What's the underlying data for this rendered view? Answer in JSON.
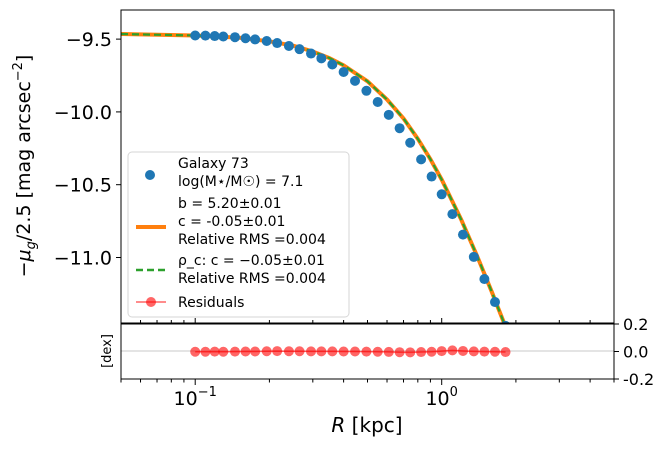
{
  "chart_data": {
    "type": "scatter",
    "xlabel": "R [kpc]",
    "ylabel": "−μ_g/2.5 [mag arcsec^−2]",
    "residual_ylabel": "[dex]",
    "x_scale": "log",
    "xlim": [
      0.05,
      5
    ],
    "ylim": [
      -11.45,
      -9.3
    ],
    "residual_ylim": [
      -0.2,
      0.2
    ],
    "x_ticks": [
      {
        "value": 0.1,
        "base": "10",
        "exp": "−1"
      },
      {
        "value": 1,
        "base": "10",
        "exp": "0"
      }
    ],
    "y_ticks": [
      {
        "value": -9.5,
        "label": "−9.5"
      },
      {
        "value": -10.0,
        "label": "−10.0"
      },
      {
        "value": -10.5,
        "label": "−10.5"
      },
      {
        "value": -11.0,
        "label": "−11.0"
      }
    ],
    "residual_ticks": [
      {
        "value": 0.2,
        "label": "0.2"
      },
      {
        "value": 0.0,
        "label": "0.0"
      },
      {
        "value": -0.2,
        "label": "-0.2"
      }
    ],
    "colors": {
      "data": "#1f77b4",
      "fit": "#ff7f0e",
      "rho_fit": "#2ca02c",
      "residuals": "#ff0000"
    },
    "legend": {
      "placement": "lower-left",
      "galaxy": "Galaxy 73",
      "mass": "log(M⋆/M☉) = 7.1",
      "fit_b": "b = 5.20±0.01",
      "fit_c": "c = -0.05±0.01",
      "fit_rms": "Relative RMS =0.004",
      "rho_c": "ρ_c: c = −0.05±0.01",
      "rho_rms": "Relative RMS =0.004",
      "residuals": "Residuals"
    },
    "fit_curve": {
      "x": [
        0.05,
        0.1,
        0.15,
        0.2,
        0.25,
        0.3,
        0.35,
        0.4,
        0.5,
        0.6,
        0.7,
        0.8,
        0.9,
        1.0,
        1.2,
        1.4,
        1.6,
        1.8,
        2.0
      ],
      "y": [
        -9.465,
        -9.475,
        -9.49,
        -9.515,
        -9.545,
        -9.585,
        -9.63,
        -9.68,
        -9.79,
        -9.915,
        -10.045,
        -10.185,
        -10.325,
        -10.465,
        -10.74,
        -11.0,
        -11.24,
        -11.46,
        -11.65
      ]
    },
    "data_points": {
      "x": [
        0.1,
        0.11,
        0.12,
        0.13,
        0.145,
        0.16,
        0.175,
        0.195,
        0.215,
        0.24,
        0.265,
        0.295,
        0.325,
        0.36,
        0.4,
        0.445,
        0.495,
        0.55,
        0.61,
        0.675,
        0.745,
        0.825,
        0.91,
        1.0,
        1.105,
        1.22,
        1.35,
        1.49,
        1.645,
        1.815
      ],
      "y": [
        -9.475,
        -9.476,
        -9.479,
        -9.482,
        -9.487,
        -9.494,
        -9.502,
        -9.513,
        -9.527,
        -9.547,
        -9.569,
        -9.599,
        -9.632,
        -9.674,
        -9.726,
        -9.787,
        -9.855,
        -9.932,
        -10.02,
        -10.112,
        -10.212,
        -10.326,
        -10.444,
        -10.566,
        -10.702,
        -10.843,
        -10.996,
        -11.148,
        -11.306,
        -11.47
      ]
    },
    "residuals": {
      "x": [
        0.1,
        0.11,
        0.12,
        0.13,
        0.145,
        0.16,
        0.175,
        0.195,
        0.215,
        0.24,
        0.265,
        0.295,
        0.325,
        0.36,
        0.4,
        0.445,
        0.495,
        0.55,
        0.61,
        0.675,
        0.745,
        0.825,
        0.91,
        1.0,
        1.105,
        1.22,
        1.35,
        1.49,
        1.645,
        1.815
      ],
      "y": [
        -0.002,
        -0.002,
        -0.001,
        -0.002,
        -0.001,
        0.0,
        0.0,
        0.002,
        0.003,
        0.002,
        0.002,
        0.001,
        0.001,
        0.001,
        0.0,
        0.0,
        -0.001,
        -0.002,
        -0.003,
        -0.005,
        -0.006,
        -0.004,
        -0.002,
        0.003,
        0.008,
        0.004,
        0.001,
        -0.001,
        -0.002,
        -0.004
      ]
    }
  }
}
